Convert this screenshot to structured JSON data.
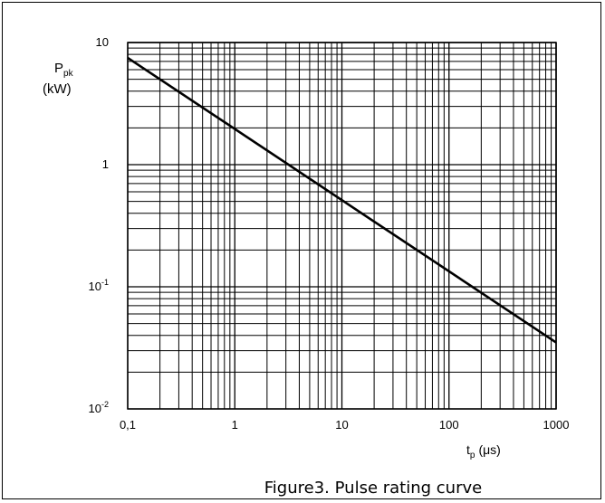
{
  "chart_data": {
    "type": "line",
    "title": "",
    "caption": "Figure3. Pulse rating curve",
    "ylabel": {
      "main": "P",
      "sub": "pk",
      "unit": "(kW)"
    },
    "xlabel": {
      "main": "t",
      "sub": "p",
      "unit": "(μs)"
    },
    "xscale": "log",
    "yscale": "log",
    "xlim": [
      0.1,
      1000
    ],
    "ylim": [
      0.01,
      10
    ],
    "grid": true,
    "x_tick_labels": [
      "0,1",
      "1",
      "10",
      "100",
      "1000"
    ],
    "y_tick_labels": [
      {
        "base": "10",
        "exp": ""
      },
      {
        "base": "1",
        "exp": ""
      },
      {
        "base": "10",
        "exp": "-1"
      },
      {
        "base": "10",
        "exp": "-2"
      }
    ],
    "series": [
      {
        "x": [
          0.1,
          1000
        ],
        "y": [
          7.5,
          0.035
        ]
      }
    ],
    "line_color": "#000000"
  }
}
